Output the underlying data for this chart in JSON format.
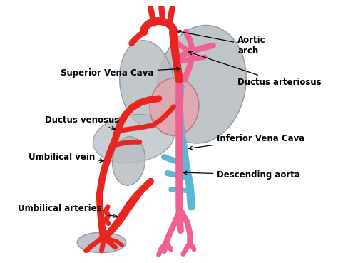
{
  "bg_color": "#ffffff",
  "red_color": "#e8251f",
  "pink_color": "#f06090",
  "blue_color": "#5bb8d4",
  "organ_color": "#b8bec4",
  "organ_edge": "#8a9098",
  "heart_color": "#e0a8b0",
  "heart_edge": "#c07080",
  "labels": {
    "superior_vena_cava": "Superior Vena Cava",
    "aortic_arch": "Aortic\narch",
    "ductus_arteriosus": "Ductus arteriosus",
    "ductus_venosus": "Ductus venosus",
    "umbilical_vein": "Umbilical vein",
    "inferior_vena_cava": "Inferior Vena Cava",
    "descending_aorta": "Descending aorta",
    "umbilical_arteries": "Umbilical arteries"
  },
  "figsize": [
    4.74,
    3.69
  ],
  "dpi": 100
}
